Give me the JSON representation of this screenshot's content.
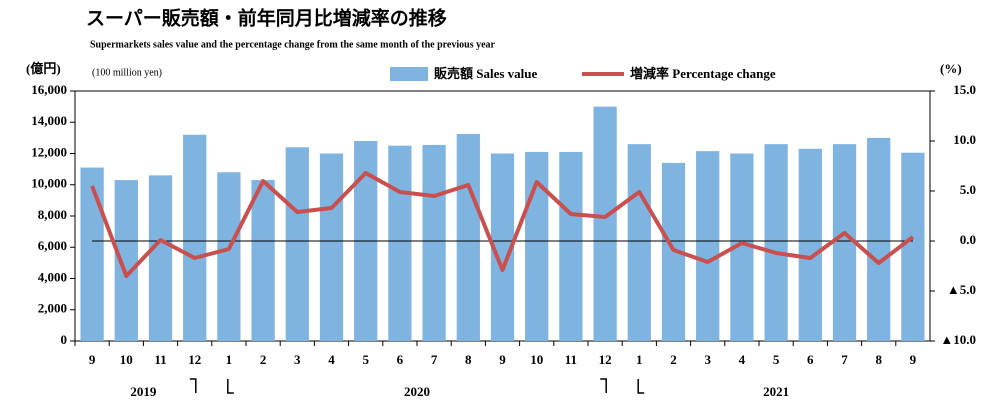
{
  "chart_data": {
    "type": "bar_line",
    "title": "スーパー販売額・前年同月比増減率の推移",
    "subtitle": "Supermarkets sales value and the percentage change from the same month of the previous year",
    "y_unit": "(億円)",
    "y_unit_en": "(100 million yen)",
    "y2_unit": "(%)",
    "categories": [
      "9",
      "10",
      "11",
      "12",
      "1",
      "2",
      "3",
      "4",
      "5",
      "6",
      "7",
      "8",
      "9",
      "10",
      "11",
      "12",
      "1",
      "2",
      "3",
      "4",
      "5",
      "6",
      "7",
      "8",
      "9"
    ],
    "year_labels": [
      "2019",
      "2020",
      "2021"
    ],
    "series": [
      {
        "name": "販売額 Sales value",
        "type": "bar",
        "color": "#7fb3e0",
        "values": [
          11100,
          10300,
          10600,
          13200,
          10800,
          10300,
          12400,
          12000,
          12800,
          12500,
          12550,
          13250,
          12000,
          12100,
          12100,
          15000,
          12600,
          11400,
          12150,
          12000,
          12600,
          12300,
          12600,
          13000,
          12050
        ]
      },
      {
        "name": "増減率 Percentage change",
        "type": "line",
        "axis": "y2",
        "color": "#c9504e",
        "values": [
          5.5,
          -3.5,
          0.1,
          -1.7,
          -0.8,
          6.0,
          2.9,
          3.3,
          6.8,
          4.9,
          4.5,
          5.6,
          -2.9,
          5.9,
          2.7,
          2.4,
          4.9,
          -0.9,
          -2.1,
          -0.2,
          -1.2,
          -1.7,
          0.8,
          -2.2,
          0.4
        ]
      }
    ],
    "ylim": [
      0,
      16000
    ],
    "yticks": [
      0,
      {
        "value": 2000,
        "label": "2,000"
      },
      {
        "value": 4000,
        "label": "4,000"
      },
      {
        "value": 6000,
        "label": "6,000"
      },
      {
        "value": 8000,
        "label": "8,000"
      },
      {
        "value": 10000,
        "label": "10,000"
      },
      {
        "value": 12000,
        "label": "12,000"
      },
      {
        "value": 14000,
        "label": "14,000"
      },
      {
        "value": 16000,
        "label": "16,000"
      }
    ],
    "y2lim": [
      -10,
      15
    ],
    "y2ticks": [
      {
        "value": -10,
        "label": "▲10.0"
      },
      {
        "value": -5,
        "label": "▲5.0"
      },
      {
        "value": 0,
        "label": "0.0"
      },
      {
        "value": 5,
        "label": "5.0"
      },
      {
        "value": 10,
        "label": "10.0"
      },
      {
        "value": 15,
        "label": "15.0"
      }
    ]
  }
}
